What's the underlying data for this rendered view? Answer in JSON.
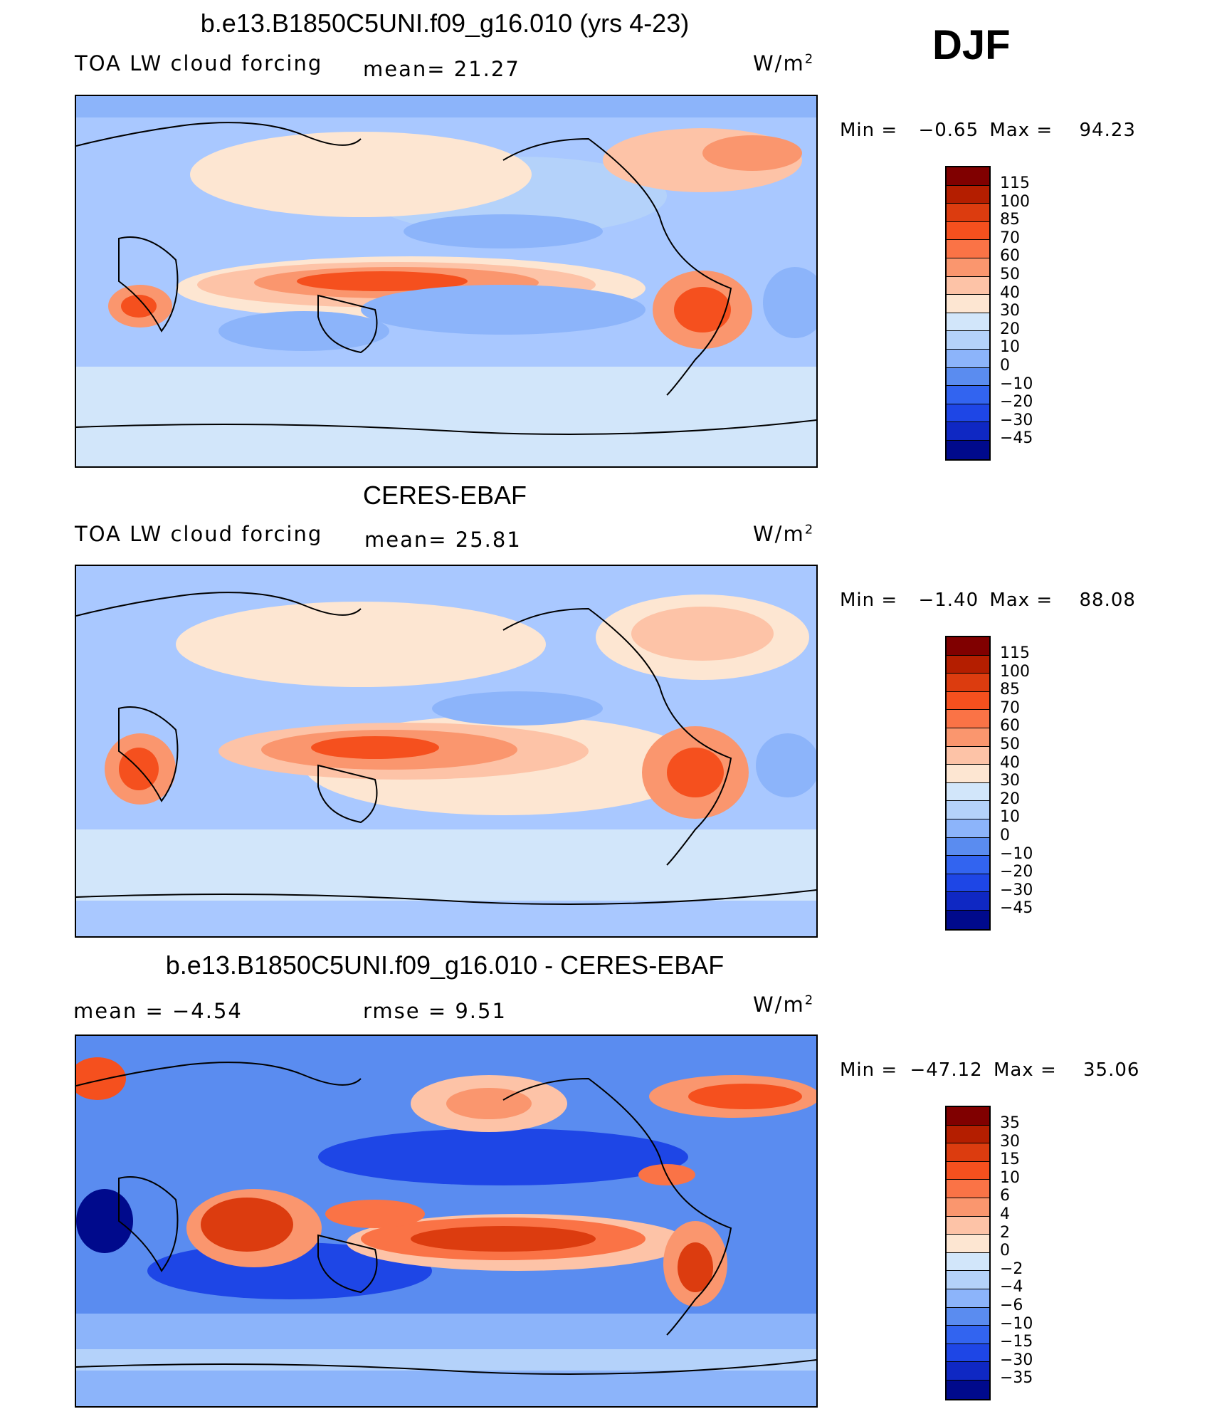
{
  "season": "DJF",
  "panels": [
    {
      "title": "b.e13.B1850C5UNI.f09_g16.010 (yrs 4-23)",
      "variable": "TOA LW cloud forcing",
      "stat1": "mean=   21.27",
      "units": "W/m",
      "units_sup": "2",
      "min_label": "Min  =",
      "min_value": "−0.65",
      "max_label": "Max  =",
      "max_value": "94.23",
      "colorbar_labels": [
        "115",
        "100",
        "85",
        "70",
        "60",
        "50",
        "40",
        "30",
        "20",
        "10",
        "0",
        "−10",
        "−20",
        "−30",
        "−45"
      ]
    },
    {
      "title": "CERES-EBAF",
      "variable": "TOA LW cloud forcing",
      "stat1": "mean=   25.81",
      "units": "W/m",
      "units_sup": "2",
      "min_label": "Min  =",
      "min_value": "−1.40",
      "max_label": "Max  =",
      "max_value": "88.08",
      "colorbar_labels": [
        "115",
        "100",
        "85",
        "70",
        "60",
        "50",
        "40",
        "30",
        "20",
        "10",
        "0",
        "−10",
        "−20",
        "−30",
        "−45"
      ]
    },
    {
      "title": "b.e13.B1850C5UNI.f09_g16.010 - CERES-EBAF",
      "stat1": "mean  =    −4.54",
      "stat2": "rmse  =     9.51",
      "units": "W/m",
      "units_sup": "2",
      "min_label": "Min  =",
      "min_value": "−47.12",
      "max_label": "Max  =",
      "max_value": "35.06",
      "colorbar_labels": [
        "35",
        "30",
        "15",
        "10",
        "6",
        "4",
        "2",
        "0",
        "−2",
        "−4",
        "−6",
        "−10",
        "−15",
        "−30",
        "−35"
      ]
    }
  ],
  "colors": {
    "scale": [
      "#800000",
      "#b41e00",
      "#dc3c0f",
      "#f5501e",
      "#fa7346",
      "#fa966e",
      "#fdc3a7",
      "#fde6d2",
      "#d2e6fa",
      "#b4d2fa",
      "#8cb4fa",
      "#5a8cf0",
      "#3264f0",
      "#1e46e6",
      "#0f28c3",
      "#000a8c"
    ]
  }
}
